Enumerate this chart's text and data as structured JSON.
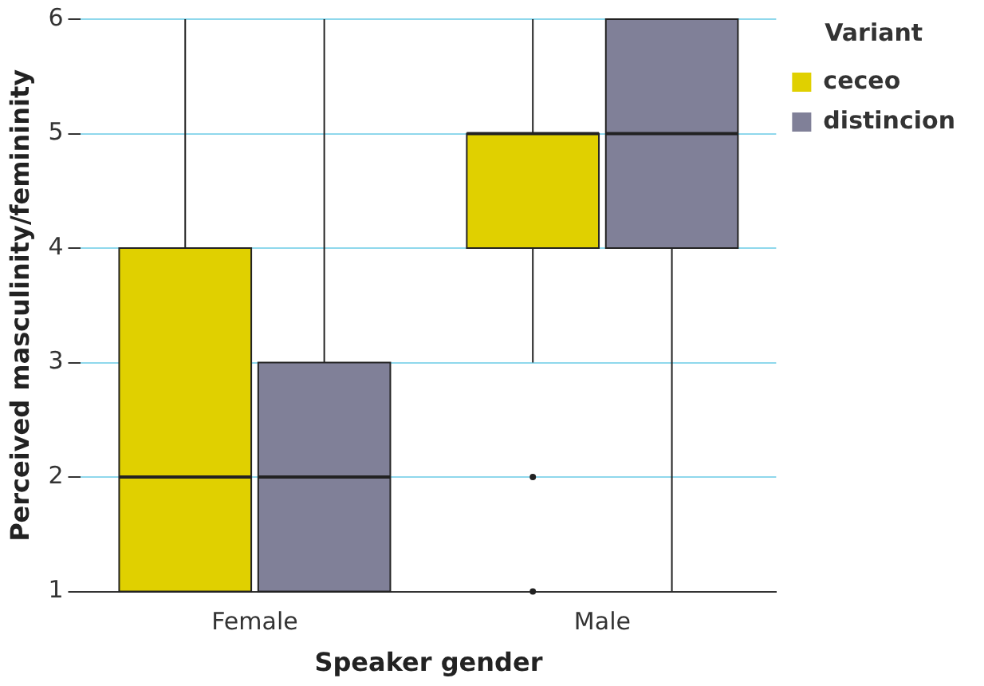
{
  "chart_data": {
    "type": "box",
    "xlabel": "Speaker gender",
    "ylabel": "Perceived masculinity/femininity",
    "legend_title": "Variant",
    "categories": [
      "Female",
      "Male"
    ],
    "ylim": [
      1,
      6
    ],
    "yticks": [
      1,
      2,
      3,
      4,
      5,
      6
    ],
    "grid": "y",
    "legend": "top right",
    "series": [
      {
        "name": "ceceo",
        "color": "#e0d000",
        "boxes": [
          {
            "low": 1,
            "q1": 1,
            "median": 2,
            "q3": 4,
            "high": 6
          },
          {
            "low": 3,
            "q1": 4,
            "median": 5,
            "q3": 5,
            "high": 6,
            "outliers": [
              2,
              1
            ]
          }
        ]
      },
      {
        "name": "distincion",
        "color": "#808098",
        "boxes": [
          {
            "low": 1,
            "q1": 1,
            "median": 2,
            "q3": 3,
            "high": 6
          },
          {
            "low": 1,
            "q1": 4,
            "median": 5,
            "q3": 6,
            "high": 6
          }
        ]
      }
    ]
  }
}
